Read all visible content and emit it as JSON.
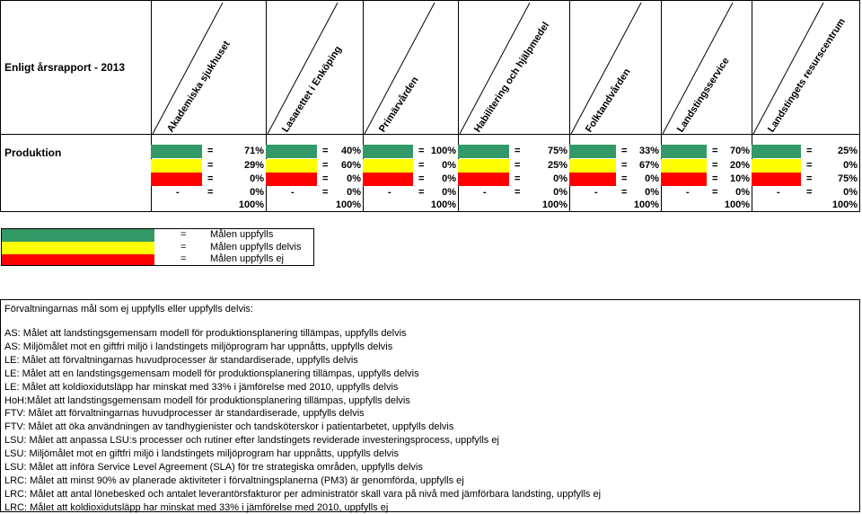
{
  "report_title": "Enligt årsrapport - 2013",
  "row_label": "Produktion",
  "colors": {
    "green": "#339966",
    "yellow": "#ffff00",
    "red": "#ff0000"
  },
  "columns": [
    {
      "name": "Akademiska sjukhuset",
      "green": "71%",
      "yellow": "29%",
      "red": "0%",
      "none_dash": "-",
      "none": "0%",
      "total": "100%"
    },
    {
      "name": "Lasarettet i Enköping",
      "green": "40%",
      "yellow": "60%",
      "red": "0%",
      "none_dash": "-",
      "none": "0%",
      "total": "100%"
    },
    {
      "name": "Primärvården",
      "green": "100%",
      "yellow": "0%",
      "red": "0%",
      "none_dash": "-",
      "none": "0%",
      "total": "100%"
    },
    {
      "name": "Habilitering och hjälpmedel",
      "green": "75%",
      "yellow": "25%",
      "red": "0%",
      "none_dash": "-",
      "none": "0%",
      "total": "100%"
    },
    {
      "name": "Folktandvården",
      "green": "33%",
      "yellow": "67%",
      "red": "0%",
      "none_dash": "-",
      "none": "0%",
      "total": "100%"
    },
    {
      "name": "Landstingsservice",
      "green": "70%",
      "yellow": "20%",
      "red": "10%",
      "none_dash": "-",
      "none": "0%",
      "total": "100%"
    },
    {
      "name": "Landstingets resurscentrum",
      "green": "25%",
      "yellow": "0%",
      "red": "75%",
      "none_dash": "-",
      "none": "0%",
      "total": "100%"
    }
  ],
  "eq": "=",
  "legend": [
    {
      "eq": "=",
      "label": "Målen uppfylls"
    },
    {
      "eq": "=",
      "label": "Målen uppfylls delvis"
    },
    {
      "eq": "=",
      "label": "Målen uppfylls ej"
    }
  ],
  "notes": {
    "heading": "Förvaltningarnas mål som ej uppfylls eller uppfylls delvis:",
    "items": [
      "AS:  Målet att landstingsgemensam modell för produktionsplanering tillämpas, uppfylls delvis",
      "AS:  Miljömålet mot en giftfri miljö i landstingets miljöprogram har uppnåtts, uppfylls delvis",
      "LE:  Målet att förvaltningarnas huvudprocesser är standardiserade, uppfylls delvis",
      "LE:  Målet att en landstingsgemensam modell för produktionsplanering tillämpas, uppfylls delvis",
      "LE:  Målet att koldioxidutsläpp har minskat med 33% i jämförelse med 2010, uppfylls delvis",
      "HoH:Målet att landstingsgemensam modell för produktionsplanering tillämpas, uppfylls delvis",
      "FTV: Målet att förvaltningarnas huvudprocesser är standardiserade, uppfylls delvis",
      "FTV: Målet att öka användningen av tandhygienister och tandsköterskor i patientarbetet, uppfylls delvis",
      "LSU: Målet att anpassa LSU:s processer och rutiner efter landstingets reviderade investeringsprocess, uppfylls ej",
      "LSU: Miljömålet mot en giftfri miljö i landstingets miljöprogram har uppnåtts, uppfylls delvis",
      "LSU: Målet att införa Service Level Agreement (SLA) för tre strategiska områden, uppfylls delvis",
      "LRC: Målet att minst 90% av planerade aktiviteter i förvaltningsplanerna (PM3) är genomförda, uppfylls ej",
      "LRC: Målet att antal lönebesked och antalet leverantörsfakturor per administratör skall vara på nivå med jämförbara landsting, uppfylls ej",
      "LRC: Målet att koldioxidutsläpp har minskat med 33% i jämförelse med 2010, uppfylls ej"
    ]
  }
}
